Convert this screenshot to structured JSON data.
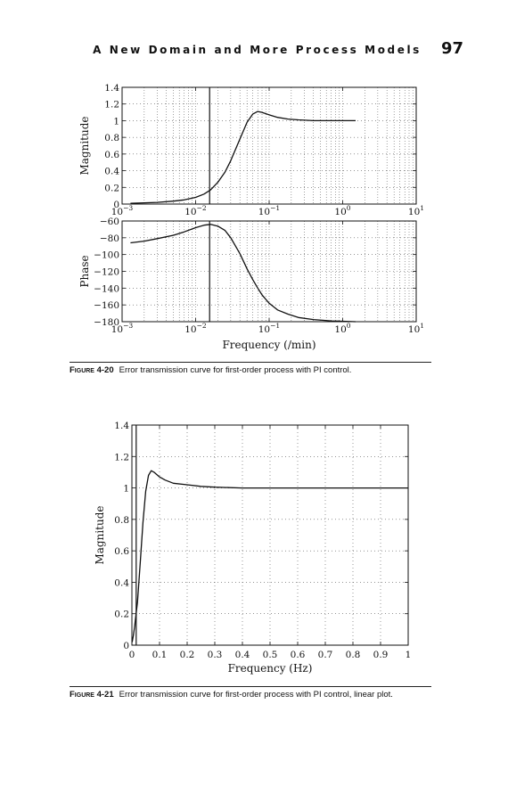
{
  "header": {
    "running_title": "A New Domain and More Process Models",
    "page_number": "97"
  },
  "figure_4_20": {
    "label": "Figure 4-20",
    "caption": "Error transmission curve for first-order process with PI control."
  },
  "figure_4_21": {
    "label": "Figure 4-21",
    "caption": "Error transmission curve for first-order process with PI control, linear plot."
  },
  "chart_data": [
    {
      "type": "line",
      "xscale": "log",
      "xlim": [
        0.001,
        10
      ],
      "ylim": [
        0,
        1.4
      ],
      "ylabel": "Magnitude",
      "xlabel": "",
      "grid": "dotted",
      "x_ticks": [
        {
          "value": 0.001,
          "base": "10",
          "exp": "−3"
        },
        {
          "value": 0.01,
          "base": "10",
          "exp": "−2"
        },
        {
          "value": 0.1,
          "base": "10",
          "exp": "−1"
        },
        {
          "value": 1,
          "base": "10",
          "exp": "0"
        },
        {
          "value": 10,
          "base": "10",
          "exp": "1"
        }
      ],
      "y_ticks": [
        {
          "value": 0,
          "label": "0"
        },
        {
          "value": 0.2,
          "label": "0.2"
        },
        {
          "value": 0.4,
          "label": "0.4"
        },
        {
          "value": 0.6,
          "label": "0.6"
        },
        {
          "value": 0.8,
          "label": "0.8"
        },
        {
          "value": 1.0,
          "label": "1"
        },
        {
          "value": 1.2,
          "label": "1.2"
        },
        {
          "value": 1.4,
          "label": "1.4"
        }
      ],
      "vline_x": 0.0155,
      "series": [
        {
          "x": [
            0.0013,
            0.002,
            0.003,
            0.005,
            0.007,
            0.01,
            0.013,
            0.016,
            0.02,
            0.025,
            0.03,
            0.04,
            0.05,
            0.06,
            0.07,
            0.08,
            0.1,
            0.13,
            0.18,
            0.25,
            0.4,
            0.7,
            1.0,
            1.5
          ],
          "y": [
            0.01,
            0.015,
            0.02,
            0.035,
            0.05,
            0.08,
            0.12,
            0.17,
            0.26,
            0.38,
            0.52,
            0.78,
            0.98,
            1.08,
            1.11,
            1.1,
            1.07,
            1.04,
            1.02,
            1.01,
            1.0,
            1.0,
            1.0,
            1.0
          ]
        }
      ]
    },
    {
      "type": "line",
      "xscale": "log",
      "xlim": [
        0.001,
        10
      ],
      "ylim": [
        -180,
        -60
      ],
      "ylabel": "Phase",
      "xlabel": "Frequency (/min)",
      "grid": "dotted",
      "x_ticks": [
        {
          "value": 0.001,
          "base": "10",
          "exp": "−3"
        },
        {
          "value": 0.01,
          "base": "10",
          "exp": "−2"
        },
        {
          "value": 0.1,
          "base": "10",
          "exp": "−1"
        },
        {
          "value": 1,
          "base": "10",
          "exp": "0"
        },
        {
          "value": 10,
          "base": "10",
          "exp": "1"
        }
      ],
      "y_ticks": [
        {
          "value": -60,
          "label": "−60"
        },
        {
          "value": -80,
          "label": "−80"
        },
        {
          "value": -100,
          "label": "−100"
        },
        {
          "value": -120,
          "label": "−120"
        },
        {
          "value": -140,
          "label": "−140"
        },
        {
          "value": -160,
          "label": "−160"
        },
        {
          "value": -180,
          "label": "−180"
        }
      ],
      "vline_x": 0.0155,
      "series": [
        {
          "x": [
            0.0013,
            0.002,
            0.003,
            0.005,
            0.007,
            0.01,
            0.013,
            0.016,
            0.02,
            0.025,
            0.03,
            0.04,
            0.05,
            0.06,
            0.07,
            0.08,
            0.1,
            0.13,
            0.18,
            0.25,
            0.4,
            0.7,
            1.0,
            1.5
          ],
          "y": [
            -86,
            -84,
            -81,
            -77,
            -73,
            -68,
            -65,
            -64,
            -66,
            -71,
            -80,
            -99,
            -117,
            -130,
            -140,
            -148,
            -158,
            -166,
            -171,
            -175,
            -177.5,
            -179,
            -179.5,
            -180
          ]
        }
      ]
    },
    {
      "type": "line",
      "xscale": "linear",
      "xlim": [
        0,
        1
      ],
      "ylim": [
        0,
        1.4
      ],
      "ylabel": "Magnitude",
      "xlabel": "Frequency (Hz)",
      "grid": "dotted",
      "x_ticks": [
        {
          "value": 0,
          "label": "0"
        },
        {
          "value": 0.1,
          "label": "0.1"
        },
        {
          "value": 0.2,
          "label": "0.2"
        },
        {
          "value": 0.3,
          "label": "0.3"
        },
        {
          "value": 0.4,
          "label": "0.4"
        },
        {
          "value": 0.5,
          "label": "0.5"
        },
        {
          "value": 0.6,
          "label": "0.6"
        },
        {
          "value": 0.7,
          "label": "0.7"
        },
        {
          "value": 0.8,
          "label": "0.8"
        },
        {
          "value": 0.9,
          "label": "0.9"
        },
        {
          "value": 1,
          "label": "1"
        }
      ],
      "y_ticks": [
        {
          "value": 0,
          "label": "0"
        },
        {
          "value": 0.2,
          "label": "0.2"
        },
        {
          "value": 0.4,
          "label": "0.4"
        },
        {
          "value": 0.6,
          "label": "0.6"
        },
        {
          "value": 0.8,
          "label": "0.8"
        },
        {
          "value": 1.0,
          "label": "1"
        },
        {
          "value": 1.2,
          "label": "1.2"
        },
        {
          "value": 1.4,
          "label": "1.4"
        }
      ],
      "vline_x": 0.0155,
      "series": [
        {
          "x": [
            0.001,
            0.005,
            0.01,
            0.015,
            0.02,
            0.03,
            0.04,
            0.05,
            0.06,
            0.07,
            0.08,
            0.1,
            0.12,
            0.15,
            0.2,
            0.25,
            0.3,
            0.4,
            0.5,
            0.6,
            0.8,
            1.0
          ],
          "y": [
            0.02,
            0.06,
            0.12,
            0.2,
            0.27,
            0.52,
            0.78,
            0.98,
            1.08,
            1.11,
            1.1,
            1.07,
            1.05,
            1.03,
            1.02,
            1.01,
            1.005,
            1.0,
            1.0,
            1.0,
            1.0,
            1.0
          ]
        }
      ]
    }
  ]
}
